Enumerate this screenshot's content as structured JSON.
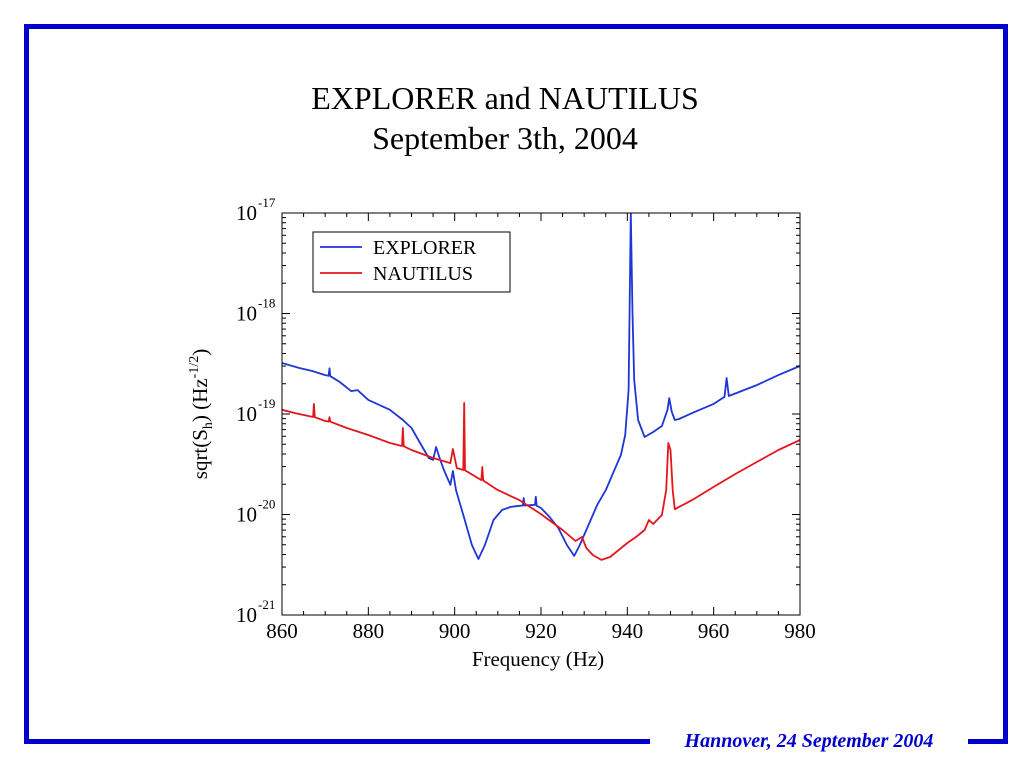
{
  "slide": {
    "title_line1": "EXPLORER and NAUTILUS",
    "title_line2": "September 3th, 2004"
  },
  "footer": {
    "text": "Hannover, 24 September 2004"
  },
  "theme": {
    "frame_color": "#0000cc",
    "footer_color": "#0000cc"
  },
  "chart_data": {
    "type": "line",
    "xlabel": "Frequency (Hz)",
    "ylabel": {
      "pre": "sqrt(S",
      "sub": "h",
      "mid": ") (Hz",
      "sup": "-1/2",
      "post": ")"
    },
    "xlim": [
      860,
      980
    ],
    "ylim": [
      1e-21,
      1e-17
    ],
    "xscale": "linear",
    "yscale": "log",
    "grid": false,
    "legend": {
      "position": "top-left"
    },
    "x_ticks": [
      {
        "value": 860,
        "label": "860"
      },
      {
        "value": 880,
        "label": "880"
      },
      {
        "value": 900,
        "label": "900"
      },
      {
        "value": 920,
        "label": "920"
      },
      {
        "value": 940,
        "label": "940"
      },
      {
        "value": 960,
        "label": "960"
      },
      {
        "value": 980,
        "label": "980"
      }
    ],
    "y_ticks": [
      {
        "value": 1e-17,
        "base": "10",
        "exponent": "-17"
      },
      {
        "value": 1e-18,
        "base": "10",
        "exponent": "-18"
      },
      {
        "value": 1e-19,
        "base": "10",
        "exponent": "-19"
      },
      {
        "value": 1e-20,
        "base": "10",
        "exponent": "-20"
      },
      {
        "value": 1e-21,
        "base": "10",
        "exponent": "-21"
      }
    ],
    "series": [
      {
        "name": "EXPLORER",
        "color": "#1f35d6",
        "points": [
          [
            860,
            3.22e-19
          ],
          [
            864,
            2.87e-19
          ],
          [
            867,
            2.68e-19
          ],
          [
            870,
            2.44e-19
          ],
          [
            870.8,
            2.4e-19
          ],
          [
            871,
            2.85e-19
          ],
          [
            871.2,
            2.38e-19
          ],
          [
            873.4,
            2.08e-19
          ],
          [
            876,
            1.69e-19
          ],
          [
            877.5,
            1.73e-19
          ],
          [
            880,
            1.38e-19
          ],
          [
            885,
            1.1e-19
          ],
          [
            888,
            8.71e-20
          ],
          [
            890,
            7.26e-20
          ],
          [
            892,
            5.14e-20
          ],
          [
            894,
            3.65e-20
          ],
          [
            895,
            3.49e-20
          ],
          [
            895.7,
            4.69e-20
          ],
          [
            896.5,
            3.65e-20
          ],
          [
            897.5,
            2.77e-20
          ],
          [
            899,
            1.97e-20
          ],
          [
            899.6,
            2.71e-20
          ],
          [
            900.3,
            1.75e-20
          ],
          [
            902,
            9.89e-21
          ],
          [
            904,
            4.97e-21
          ],
          [
            905.5,
            3.61e-21
          ],
          [
            907,
            4.97e-21
          ],
          [
            909,
            8.82e-21
          ],
          [
            911,
            1.11e-20
          ],
          [
            913,
            1.19e-20
          ],
          [
            915,
            1.22e-20
          ],
          [
            915.8,
            1.23e-20
          ],
          [
            916,
            1.46e-20
          ],
          [
            916.2,
            1.23e-20
          ],
          [
            918.6,
            1.25e-20
          ],
          [
            918.8,
            1.5e-20
          ],
          [
            919,
            1.22e-20
          ],
          [
            920,
            1.16e-20
          ],
          [
            922,
            9.44e-21
          ],
          [
            924,
            7.34e-21
          ],
          [
            926,
            4.97e-21
          ],
          [
            927.7,
            3.87e-21
          ],
          [
            929,
            4.97e-21
          ],
          [
            931,
            7.86e-21
          ],
          [
            933,
            1.24e-20
          ],
          [
            935,
            1.75e-20
          ],
          [
            937,
            2.77e-20
          ],
          [
            938.5,
            3.91e-20
          ],
          [
            939.5,
            6.18e-20
          ],
          [
            940.3,
            1.73e-19
          ],
          [
            940.8,
            1e-17
          ],
          [
            941.2,
            1e-18
          ],
          [
            941.6,
            2.18e-19
          ],
          [
            942.5,
            8.71e-20
          ],
          [
            944,
            5.9e-20
          ],
          [
            946,
            6.62e-20
          ],
          [
            948,
            7.6e-20
          ],
          [
            949.3,
            1.1e-19
          ],
          [
            949.7,
            1.44e-19
          ],
          [
            950.3,
            1.05e-19
          ],
          [
            951,
            8.71e-20
          ],
          [
            952,
            8.92e-20
          ],
          [
            955,
            1.02e-19
          ],
          [
            960,
            1.26e-19
          ],
          [
            962.5,
            1.48e-19
          ],
          [
            963,
            2.28e-19
          ],
          [
            963.5,
            1.51e-19
          ],
          [
            970,
            1.94e-19
          ],
          [
            975,
            2.44e-19
          ],
          [
            980,
            3e-19
          ]
        ]
      },
      {
        "name": "NAUTILUS",
        "color": "#e3161c",
        "points": [
          [
            860,
            1.1e-19
          ],
          [
            863,
            1.02e-19
          ],
          [
            867.2,
            9.33e-20
          ],
          [
            867.4,
            1.26e-19
          ],
          [
            867.6,
            9.3e-20
          ],
          [
            870,
            8.52e-20
          ],
          [
            870.8,
            8.4e-20
          ],
          [
            871,
            9.3e-20
          ],
          [
            871.2,
            8.38e-20
          ],
          [
            875,
            7.26e-20
          ],
          [
            880,
            6.18e-20
          ],
          [
            885,
            5.14e-20
          ],
          [
            887.8,
            4.8e-20
          ],
          [
            888,
            7.26e-20
          ],
          [
            888.2,
            4.78e-20
          ],
          [
            890,
            4.38e-20
          ],
          [
            895,
            3.65e-20
          ],
          [
            899,
            3.25e-20
          ],
          [
            899.6,
            4.48e-20
          ],
          [
            900.5,
            2.9e-20
          ],
          [
            902,
            2.77e-20
          ],
          [
            902.2,
            1.29e-19
          ],
          [
            902.4,
            2.75e-20
          ],
          [
            906.2,
            2.2e-20
          ],
          [
            906.4,
            2.97e-20
          ],
          [
            906.6,
            2.18e-20
          ],
          [
            910,
            1.75e-20
          ],
          [
            915,
            1.39e-20
          ],
          [
            920,
            1.01e-20
          ],
          [
            925,
            7.01e-21
          ],
          [
            928,
            5.45e-21
          ],
          [
            929.5,
            5.97e-21
          ],
          [
            930.5,
            4.64e-21
          ],
          [
            932,
            3.95e-21
          ],
          [
            934,
            3.53e-21
          ],
          [
            936,
            3.78e-21
          ],
          [
            938,
            4.43e-21
          ],
          [
            940,
            5.2e-21
          ],
          [
            942,
            5.97e-21
          ],
          [
            944,
            7.01e-21
          ],
          [
            945,
            8.82e-21
          ],
          [
            946,
            8.05e-21
          ],
          [
            948,
            9.89e-21
          ],
          [
            949,
            1.75e-20
          ],
          [
            949.5,
            5.14e-20
          ],
          [
            950,
            4.38e-20
          ],
          [
            950.5,
            1.75e-20
          ],
          [
            951,
            1.13e-20
          ],
          [
            955,
            1.39e-20
          ],
          [
            960,
            1.88e-20
          ],
          [
            965,
            2.53e-20
          ],
          [
            970,
            3.33e-20
          ],
          [
            975,
            4.38e-20
          ],
          [
            980,
            5.51e-20
          ]
        ]
      }
    ]
  }
}
